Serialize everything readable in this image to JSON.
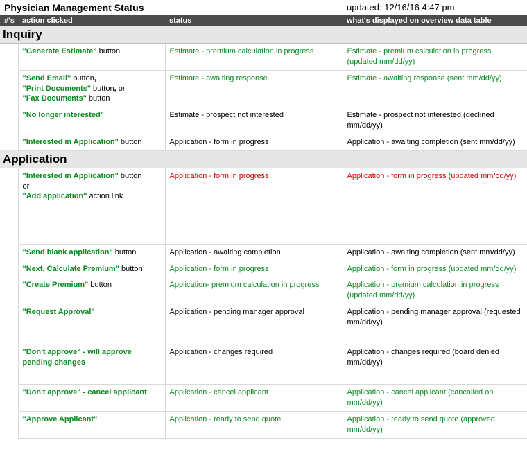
{
  "title": "Physician Management Status",
  "updated": "updated: 12/16/16 4:47 pm",
  "headers": {
    "num": "#'s",
    "action": "action clicked",
    "status": "status",
    "displayed": "what's displayed on overview data table"
  },
  "sections": {
    "inquiry": "Inquiry",
    "application": "Application"
  },
  "rows": {
    "r1": {
      "action_html": "<span class='bold green'>\"Generate Estimate\"</span> button",
      "status": "Estimate - premium calculation in progress",
      "status_color": "green",
      "disp": "Estimate - premium calculation in progress  (updated mm/dd/yy)",
      "disp_color": "green"
    },
    "r2": {
      "action_html": "<span class='bold green'>\"Send Email\"</span> button<span class='bold'>,</span><br><span class='bold green'>\"Print Documents\"</span> button<span class='bold'>,</span> or<br><span class='bold green'>\"Fax Documents\"</span> button",
      "status": "Estimate - awaiting response",
      "status_color": "green",
      "disp": "Estimate - awaiting response (sent mm/dd/yy)",
      "disp_color": "green"
    },
    "r3": {
      "action_html": "<span class='bold green'>\"No longer interested\"</span>",
      "status": "Estimate - prospect not interested",
      "status_color": "black",
      "disp": "Estimate - prospect not interested (declined mm/dd/yy)",
      "disp_color": "black"
    },
    "r4": {
      "action_html": "<span class='bold green'>\"Interested in Application\"</span> button",
      "status": "Application - form in progress",
      "status_color": "black",
      "disp": "Application - awaiting completion (sent mm/dd/yy)",
      "disp_color": "black"
    },
    "r5": {
      "action_html": "<span class='bold green'>\"Interested in Application\"</span> button<br>or<br><span class='bold green'>\"Add application\"</span> action link",
      "status": "Application - form in progress",
      "status_color": "red",
      "disp": "Application - form in progress (updated mm/dd/yy)",
      "disp_color": "red"
    },
    "r6": {
      "action_html": "<span class='bold green'>\"Send blank application\"</span> button",
      "status": "Application - awaiting completion",
      "status_color": "black",
      "disp": "Application - awaiting completion (sent mm/dd/yy)",
      "disp_color": "black"
    },
    "r7": {
      "action_html": "<span class='bold green'>\"Next, Calculate Premium\"</span> button",
      "status": "Application - form in progress",
      "status_color": "green",
      "disp": "Application - form in progress (updated mm/dd/yy)",
      "disp_color": "green"
    },
    "r8": {
      "action_html": "<span class='bold green'>\"Create Premium\"</span> button",
      "status": "Application- premium calculation in progress",
      "status_color": "green",
      "disp": "Application - premium calculation in progress  (updated mm/dd/yy)",
      "disp_color": "green"
    },
    "r9": {
      "action_html": "<span class='bold green'>\"Request Approval\"</span>",
      "status": "Application - pending manager approval",
      "status_color": "black",
      "disp": "Application - pending manager approval (requested mm/dd/yy)",
      "disp_color": "black"
    },
    "r10": {
      "action_html": "<span class='bold green'>\"Don't approve\" - will approve pending changes</span>",
      "status": "Application - changes required",
      "status_color": "black",
      "disp": "Application - changes required (board denied mm/dd/yy)",
      "disp_color": "black"
    },
    "r11": {
      "action_html": "<span class='bold green'>\"Don't approve\" - cancel applicant</span>",
      "status": "Application - cancel applicant",
      "status_color": "green",
      "disp": "Application - cancel applicant  (cancalled on  mm/dd/yy)",
      "disp_color": "green"
    },
    "r12": {
      "action_html": "<span class='bold green'>\"Approve Applicant\"</span>",
      "status": "Application - ready to send quote",
      "status_color": "green",
      "disp": "Application - ready to send quote (approved mm/dd/yy)",
      "disp_color": "green"
    }
  }
}
